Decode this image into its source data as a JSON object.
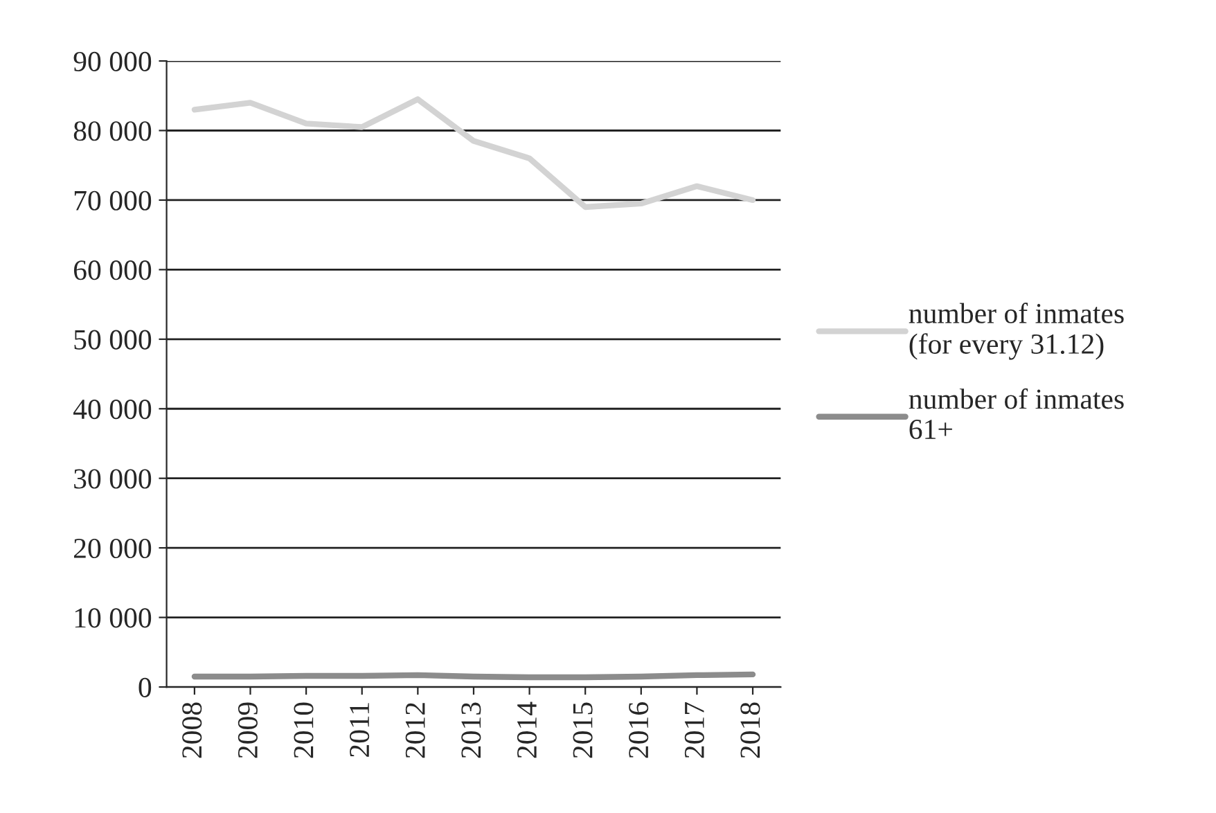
{
  "chart_data": {
    "type": "line",
    "categories": [
      "2008",
      "2009",
      "2010",
      "2011",
      "2012",
      "2013",
      "2014",
      "2015",
      "2016",
      "2017",
      "2018"
    ],
    "series": [
      {
        "name": "number of inmates (for every 31.12)",
        "color": "#d3d3d3",
        "values": [
          83000,
          84000,
          81000,
          80500,
          84500,
          78500,
          76000,
          69000,
          69500,
          72000,
          70000
        ]
      },
      {
        "name": "number of inmates 61+",
        "color": "#8c8c8c",
        "values": [
          1500,
          1500,
          1600,
          1600,
          1700,
          1500,
          1400,
          1400,
          1500,
          1700,
          1800
        ]
      }
    ],
    "ylim": [
      0,
      90000
    ],
    "yticks": [
      {
        "value": 0,
        "label": "0"
      },
      {
        "value": 10000,
        "label": "10 000"
      },
      {
        "value": 20000,
        "label": "20 000"
      },
      {
        "value": 30000,
        "label": "30 000"
      },
      {
        "value": 40000,
        "label": "40 000"
      },
      {
        "value": 50000,
        "label": "50 000"
      },
      {
        "value": 60000,
        "label": "60 000"
      },
      {
        "value": 70000,
        "label": "70 000"
      },
      {
        "value": 80000,
        "label": "80 000"
      },
      {
        "value": 90000,
        "label": "90 000"
      }
    ],
    "grid": "y",
    "legend": "right",
    "marker": "none",
    "line_style": "solid"
  }
}
